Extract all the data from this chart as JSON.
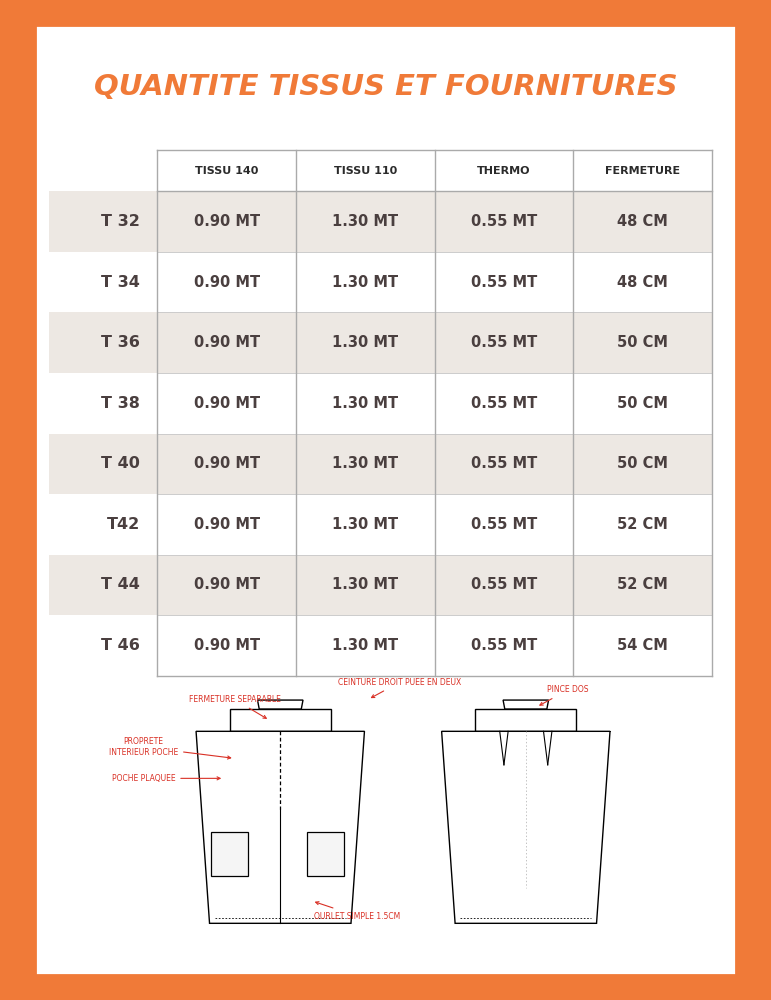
{
  "title": "QUANTITE TISSUS ET FOURNITURES",
  "title_color": "#F07A38",
  "outer_bg_color": "#F07A38",
  "background_color": "#FFFFFF",
  "header_labels": [
    "TISSU 140",
    "TISSU 110",
    "THERMO",
    "FERMETURE"
  ],
  "row_labels": [
    "T 32",
    "T 34",
    "T 36",
    "T 38",
    "T 40",
    "T42",
    "T 44",
    "T 46"
  ],
  "table_data": [
    [
      "0.90 MT",
      "1.30 MT",
      "0.55 MT",
      "48 CM"
    ],
    [
      "0.90 MT",
      "1.30 MT",
      "0.55 MT",
      "48 CM"
    ],
    [
      "0.90 MT",
      "1.30 MT",
      "0.55 MT",
      "50 CM"
    ],
    [
      "0.90 MT",
      "1.30 MT",
      "0.55 MT",
      "50 CM"
    ],
    [
      "0.90 MT",
      "1.30 MT",
      "0.55 MT",
      "50 CM"
    ],
    [
      "0.90 MT",
      "1.30 MT",
      "0.55 MT",
      "52 CM"
    ],
    [
      "0.90 MT",
      "1.30 MT",
      "0.55 MT",
      "52 CM"
    ],
    [
      "0.90 MT",
      "1.30 MT",
      "0.55 MT",
      "54 CM"
    ]
  ],
  "shaded_rows": [
    0,
    2,
    4,
    6
  ],
  "row_bg_shaded": "#EDE8E3",
  "row_bg_white": "#FFFFFF",
  "cell_text_color": "#4A3F3F",
  "header_text_color": "#2B2B2B",
  "row_label_color": "#4A3F3F",
  "annotation_color": "#D93025",
  "border_line_color": "#AAAAAA"
}
